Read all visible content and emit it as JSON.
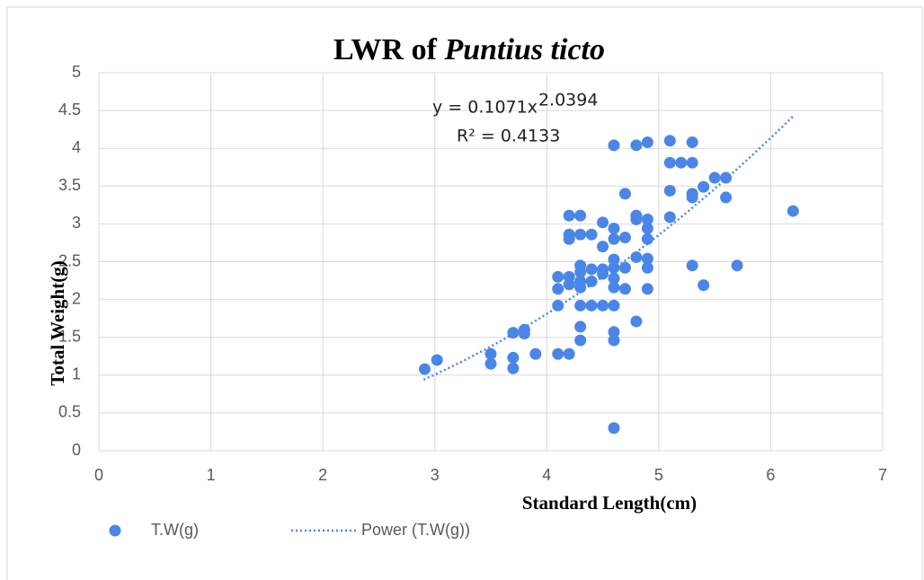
{
  "chart_data": {
    "type": "scatter",
    "title": "LWR of",
    "title_italic": "Puntius ticto",
    "x_label": "Standard Length(cm)",
    "y_label": "Total Weight(g)",
    "xlim": [
      0,
      7
    ],
    "xticks": [
      0,
      1,
      2,
      3,
      4,
      5,
      6,
      7
    ],
    "ylim": [
      0,
      5
    ],
    "yticks": [
      0,
      0.5,
      1,
      1.5,
      2,
      2.5,
      3,
      3.5,
      4,
      4.5,
      5
    ],
    "grid": true,
    "legend": "bottom",
    "series": [
      {
        "name": "T.W(g)",
        "color": "#4a86e8",
        "x": [
          2.91,
          3.02,
          3.5,
          3.5,
          3.7,
          3.7,
          3.7,
          3.8,
          3.8,
          3.9,
          4.1,
          4.2,
          4.1,
          4.1,
          4.1,
          4.2,
          4.2,
          4.2,
          4.2,
          4.2,
          4.3,
          4.3,
          4.4,
          4.3,
          4.3,
          4.3,
          4.3,
          4.3,
          4.3,
          4.3,
          4.4,
          4.4,
          4.4,
          4.5,
          4.5,
          4.5,
          4.5,
          4.5,
          4.6,
          4.6,
          4.6,
          4.6,
          4.6,
          4.6,
          4.6,
          4.6,
          4.6,
          4.6,
          4.6,
          4.7,
          4.7,
          4.7,
          4.7,
          4.8,
          4.8,
          4.8,
          4.8,
          4.8,
          4.9,
          4.9,
          4.9,
          4.9,
          4.9,
          4.9,
          4.9,
          5.1,
          5.1,
          5.1,
          5.1,
          5.2,
          5.3,
          5.3,
          5.3,
          5.3,
          5.3,
          5.4,
          5.4,
          5.5,
          5.6,
          5.6,
          5.7,
          6.2
        ],
        "values": [
          1.08,
          1.2,
          1.28,
          1.15,
          1.56,
          1.23,
          1.09,
          1.6,
          1.55,
          1.28,
          1.28,
          1.28,
          1.92,
          2.14,
          2.3,
          2.3,
          2.2,
          2.8,
          2.86,
          3.11,
          3.11,
          2.86,
          2.86,
          2.45,
          2.36,
          2.24,
          2.16,
          1.92,
          1.64,
          1.46,
          2.4,
          2.24,
          1.92,
          3.02,
          2.7,
          2.4,
          2.34,
          1.92,
          4.04,
          2.94,
          2.8,
          2.53,
          2.42,
          2.28,
          2.16,
          1.92,
          1.57,
          1.46,
          0.3,
          3.4,
          2.82,
          2.42,
          2.14,
          4.04,
          3.11,
          3.06,
          2.56,
          1.71,
          4.08,
          3.06,
          2.94,
          2.8,
          2.54,
          2.42,
          2.14,
          4.1,
          3.81,
          3.44,
          3.09,
          3.81,
          4.08,
          3.81,
          3.4,
          3.35,
          2.45,
          3.49,
          2.19,
          3.61,
          3.61,
          3.35,
          2.45,
          3.17
        ]
      }
    ],
    "trendline": {
      "name": "Power (T.W(g))",
      "color": "#4a86e8",
      "coefficient": 0.1071,
      "exponent": 2.0394,
      "x_range": [
        2.9,
        6.2
      ],
      "equation_label": "y = 0.1071x",
      "exponent_label": "2.0394",
      "r_squared_label": "R² = 0.4133"
    }
  }
}
